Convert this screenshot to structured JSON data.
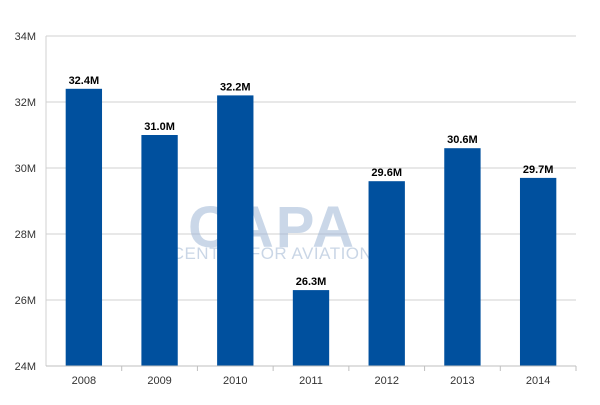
{
  "chart_data": {
    "type": "bar",
    "categories": [
      "2008",
      "2009",
      "2010",
      "2011",
      "2012",
      "2013",
      "2014"
    ],
    "values": [
      32.4,
      31.0,
      32.2,
      26.3,
      29.6,
      30.6,
      29.7
    ],
    "data_labels": [
      "32.4M",
      "31.0M",
      "32.2M",
      "26.3M",
      "29.6M",
      "30.6M",
      "29.7M"
    ],
    "y_ticks": [
      24,
      26,
      28,
      30,
      32,
      34
    ],
    "y_tick_labels": [
      "24M",
      "26M",
      "28M",
      "30M",
      "32M",
      "34M"
    ],
    "ylim": [
      24,
      34
    ],
    "title": "",
    "xlabel": "",
    "ylabel": "",
    "grid": true,
    "bar_color": "#00509e",
    "gridline_color": "#d0d0d0"
  },
  "watermark": {
    "main": "CAPA",
    "sub": "CENTRE FOR AVIATION"
  }
}
